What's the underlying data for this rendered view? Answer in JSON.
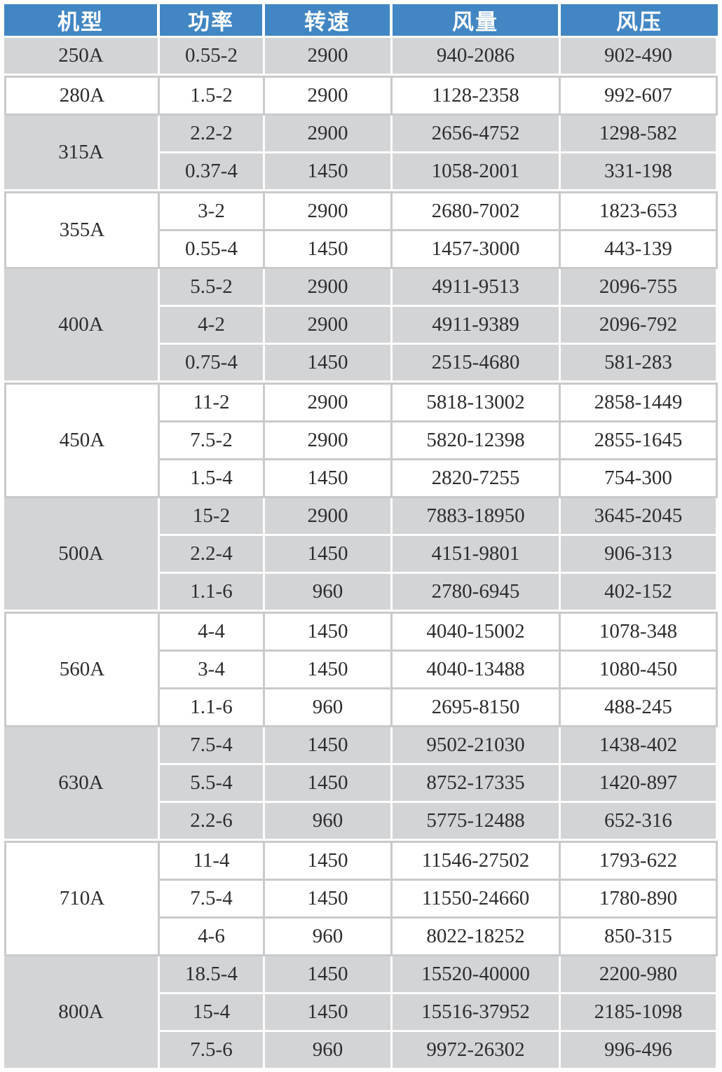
{
  "colors": {
    "header_bg": "#4286c4",
    "header_text": "#ffffff",
    "row_gray": "#d3d4d6",
    "row_white": "#ffffff",
    "line_on_gray": "#fdfdfd",
    "line_on_white": "#c9cacc",
    "text": "#2d2d2f"
  },
  "table": {
    "headers": [
      "机型",
      "功率",
      "转速",
      "风量",
      "风压"
    ],
    "groups": [
      {
        "model": "250A",
        "shade": "gray",
        "rows": [
          [
            "0.55-2",
            "2900",
            "940-2086",
            "902-490"
          ]
        ]
      },
      {
        "model": "280A",
        "shade": "white",
        "rows": [
          [
            "1.5-2",
            "2900",
            "1128-2358",
            "992-607"
          ]
        ]
      },
      {
        "model": "315A",
        "shade": "gray",
        "rows": [
          [
            "2.2-2",
            "2900",
            "2656-4752",
            "1298-582"
          ],
          [
            "0.37-4",
            "1450",
            "1058-2001",
            "331-198"
          ]
        ]
      },
      {
        "model": "355A",
        "shade": "white",
        "rows": [
          [
            "3-2",
            "2900",
            "2680-7002",
            "1823-653"
          ],
          [
            "0.55-4",
            "1450",
            "1457-3000",
            "443-139"
          ]
        ]
      },
      {
        "model": "400A",
        "shade": "gray",
        "rows": [
          [
            "5.5-2",
            "2900",
            "4911-9513",
            "2096-755"
          ],
          [
            "4-2",
            "2900",
            "4911-9389",
            "2096-792"
          ],
          [
            "0.75-4",
            "1450",
            "2515-4680",
            "581-283"
          ]
        ]
      },
      {
        "model": "450A",
        "shade": "white",
        "rows": [
          [
            "11-2",
            "2900",
            "5818-13002",
            "2858-1449"
          ],
          [
            "7.5-2",
            "2900",
            "5820-12398",
            "2855-1645"
          ],
          [
            "1.5-4",
            "1450",
            "2820-7255",
            "754-300"
          ]
        ]
      },
      {
        "model": "500A",
        "shade": "gray",
        "rows": [
          [
            "15-2",
            "2900",
            "7883-18950",
            "3645-2045"
          ],
          [
            "2.2-4",
            "1450",
            "4151-9801",
            "906-313"
          ],
          [
            "1.1-6",
            "960",
            "2780-6945",
            "402-152"
          ]
        ]
      },
      {
        "model": "560A",
        "shade": "white",
        "rows": [
          [
            "4-4",
            "1450",
            "4040-15002",
            "1078-348"
          ],
          [
            "3-4",
            "1450",
            "4040-13488",
            "1080-450"
          ],
          [
            "1.1-6",
            "960",
            "2695-8150",
            "488-245"
          ]
        ]
      },
      {
        "model": "630A",
        "shade": "gray",
        "rows": [
          [
            "7.5-4",
            "1450",
            "9502-21030",
            "1438-402"
          ],
          [
            "5.5-4",
            "1450",
            "8752-17335",
            "1420-897"
          ],
          [
            "2.2-6",
            "960",
            "5775-12488",
            "652-316"
          ]
        ]
      },
      {
        "model": "710A",
        "shade": "white",
        "rows": [
          [
            "11-4",
            "1450",
            "11546-27502",
            "1793-622"
          ],
          [
            "7.5-4",
            "1450",
            "11550-24660",
            "1780-890"
          ],
          [
            "4-6",
            "960",
            "8022-18252",
            "850-315"
          ]
        ]
      },
      {
        "model": "800A",
        "shade": "gray",
        "rows": [
          [
            "18.5-4",
            "1450",
            "15520-40000",
            "2200-980"
          ],
          [
            "15-4",
            "1450",
            "15516-37952",
            "2185-1098"
          ],
          [
            "7.5-6",
            "960",
            "9972-26302",
            "996-496"
          ]
        ]
      }
    ]
  }
}
